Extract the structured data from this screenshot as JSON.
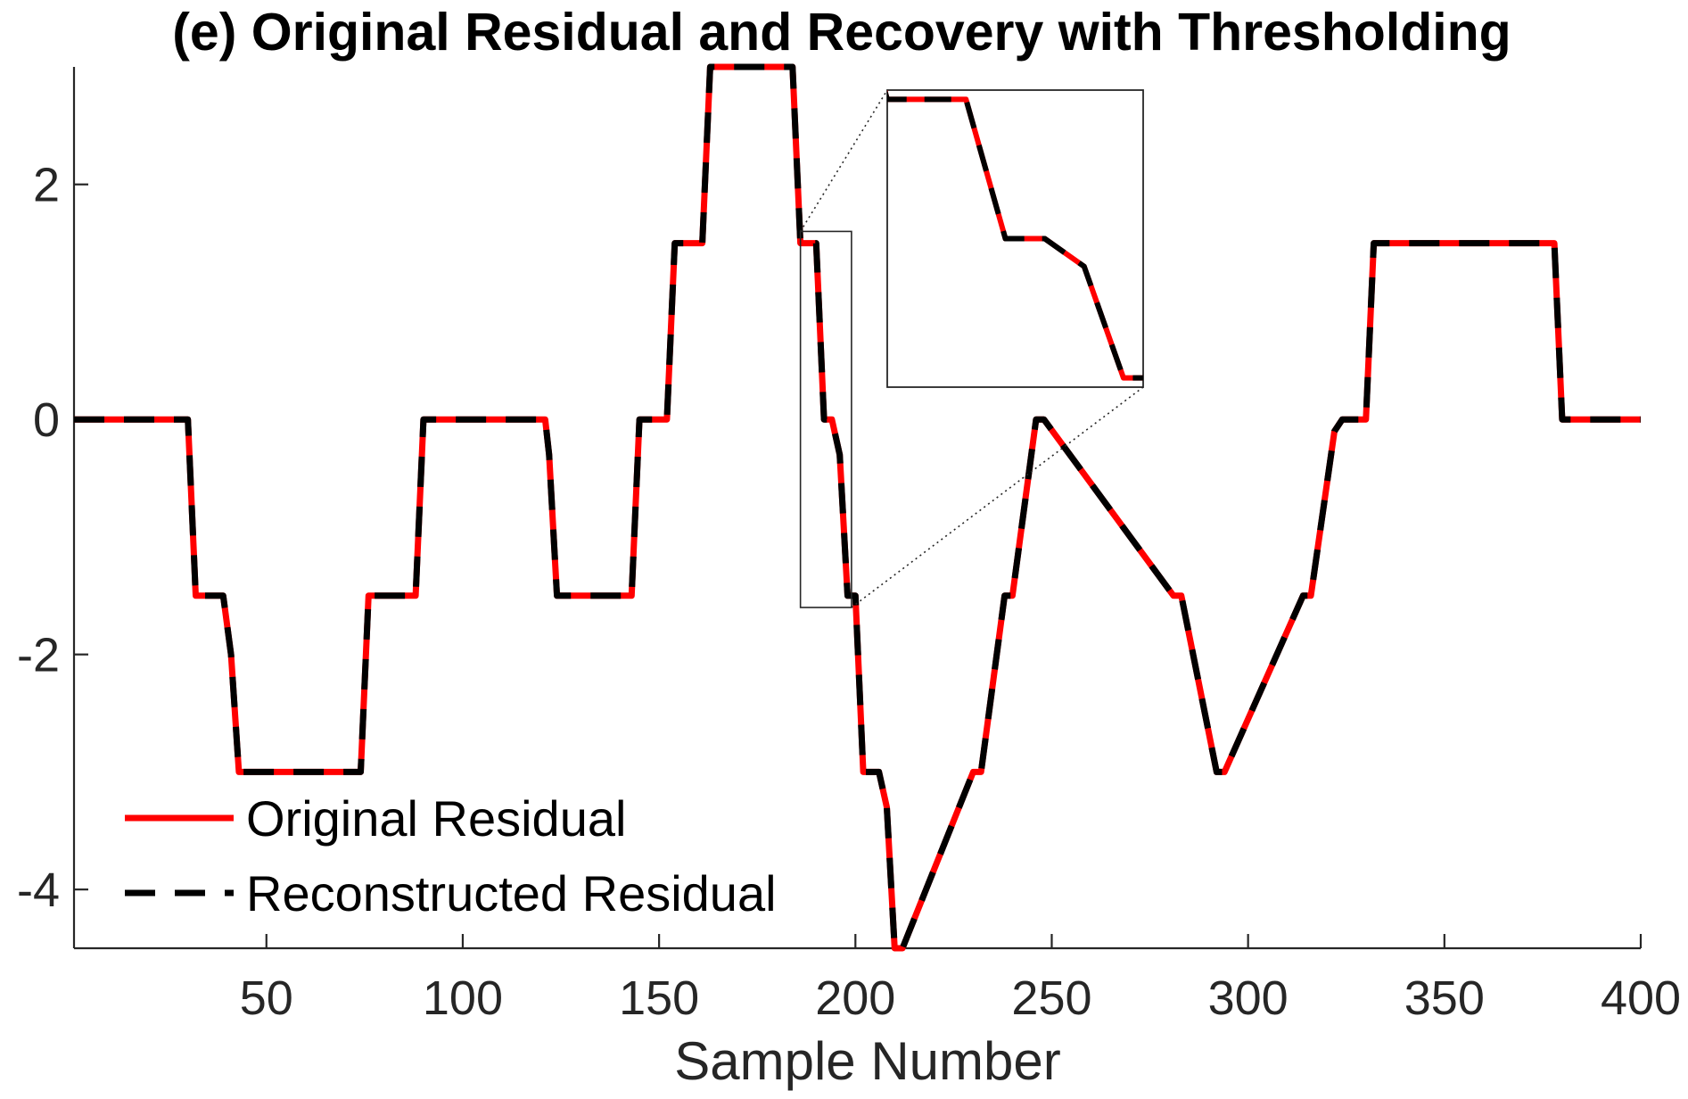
{
  "chart_data": {
    "type": "line",
    "title": "(e) Original Residual and Recovery with Thresholding",
    "xlabel": "Sample Number",
    "ylabel": "",
    "xlim": [
      1,
      400
    ],
    "ylim": [
      -4.5,
      3
    ],
    "x_ticks": [
      50,
      100,
      150,
      200,
      250,
      300,
      350,
      400
    ],
    "x_tick_labels": [
      "50",
      "100",
      "150",
      "200",
      "250",
      "300",
      "350",
      "400"
    ],
    "y_ticks": [
      -4,
      -2,
      0,
      2
    ],
    "y_tick_labels": [
      "-4",
      "-2",
      "0",
      "2"
    ],
    "grid": false,
    "legend_position": "bottom-left",
    "series": [
      {
        "name": "Original Residual",
        "color": "#ff0000",
        "style": "solid",
        "x": [
          1,
          30,
          32,
          39,
          41,
          43,
          74,
          76,
          88,
          90,
          121,
          122,
          124,
          143,
          145,
          152,
          154,
          161,
          163,
          184,
          186,
          190,
          192,
          194,
          196,
          198,
          200,
          202,
          206,
          208,
          210,
          212,
          230,
          232,
          238,
          240,
          246,
          248,
          281,
          283,
          292,
          294,
          314,
          316,
          322,
          324,
          330,
          332,
          378,
          380,
          400
        ],
        "y": [
          0,
          0,
          -1.5,
          -1.5,
          -2,
          -3,
          -3,
          -1.5,
          -1.5,
          0,
          0,
          -0.3,
          -1.5,
          -1.5,
          0,
          0,
          1.5,
          1.5,
          3,
          3,
          1.5,
          1.5,
          0,
          0,
          -0.3,
          -1.5,
          -1.5,
          -3,
          -3,
          -3.3,
          -4.5,
          -4.5,
          -3,
          -3,
          -1.5,
          -1.5,
          0,
          0,
          -1.5,
          -1.5,
          -3,
          -3,
          -1.5,
          -1.5,
          -0.1,
          0,
          0,
          1.5,
          1.5,
          0,
          0
        ]
      },
      {
        "name": "Reconstructed Residual",
        "color": "#000000",
        "style": "dashed",
        "x": [
          1,
          30,
          32,
          39,
          41,
          43,
          74,
          76,
          88,
          90,
          121,
          122,
          124,
          143,
          145,
          152,
          154,
          161,
          163,
          184,
          186,
          190,
          192,
          194,
          196,
          198,
          200,
          202,
          206,
          208,
          210,
          212,
          230,
          232,
          238,
          240,
          246,
          248,
          281,
          283,
          292,
          294,
          314,
          316,
          322,
          324,
          330,
          332,
          378,
          380,
          400
        ],
        "y": [
          0,
          0,
          -1.5,
          -1.5,
          -2,
          -3,
          -3,
          -1.5,
          -1.5,
          0,
          0,
          -0.3,
          -1.5,
          -1.5,
          0,
          0,
          1.5,
          1.5,
          3,
          3,
          1.5,
          1.5,
          0,
          0,
          -0.3,
          -1.5,
          -1.5,
          -3,
          -3,
          -3.3,
          -4.5,
          -4.5,
          -3,
          -3,
          -1.5,
          -1.5,
          0,
          0,
          -1.5,
          -1.5,
          -3,
          -3,
          -1.5,
          -1.5,
          -0.1,
          0,
          0,
          1.5,
          1.5,
          0,
          0
        ]
      }
    ],
    "inset": {
      "source_xlim": [
        186,
        199
      ],
      "source_ylim": [
        -1.6,
        1.6
      ],
      "note_position": "upper-middle"
    }
  }
}
